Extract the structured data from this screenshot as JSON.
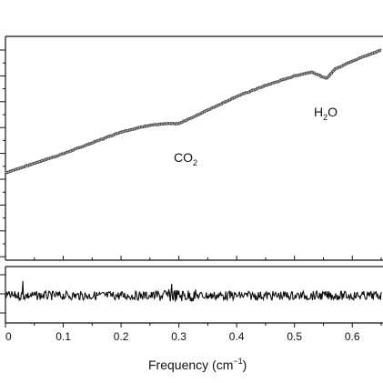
{
  "chart_data": [
    {
      "type": "line",
      "panel": "spectrum",
      "x_range": [
        0,
        0.65
      ],
      "y_ticks_major": 8,
      "grid": false,
      "series": [
        {
          "x": [
            0,
            0.05,
            0.1,
            0.15,
            0.2,
            0.25,
            0.28,
            0.3,
            0.31,
            0.35,
            0.4,
            0.45,
            0.5,
            0.53,
            0.545,
            0.555,
            0.57,
            0.6,
            0.625,
            0.65
          ],
          "y": [
            0.1,
            0.17,
            0.24,
            0.32,
            0.4,
            0.45,
            0.46,
            0.46,
            0.48,
            0.56,
            0.66,
            0.74,
            0.81,
            0.84,
            0.81,
            0.79,
            0.86,
            0.92,
            0.96,
            1.0
          ]
        }
      ],
      "annotations": [
        {
          "base": "CO",
          "sub": "2",
          "at_x": 0.31
        },
        {
          "base": "H",
          "sub": "2",
          "tail": "O",
          "at_x": 0.55
        }
      ]
    },
    {
      "type": "line",
      "panel": "residual",
      "x_range": [
        0,
        0.65
      ],
      "xlabel": "Frequency (cm",
      "xlabel_sup": "−1",
      "xlabel_end": ")",
      "xticks": [
        "0",
        "0.1",
        "0.2",
        "0.3",
        "0.4",
        "0.5",
        "0.6"
      ],
      "series": [
        {
          "noise": true
        }
      ]
    }
  ]
}
